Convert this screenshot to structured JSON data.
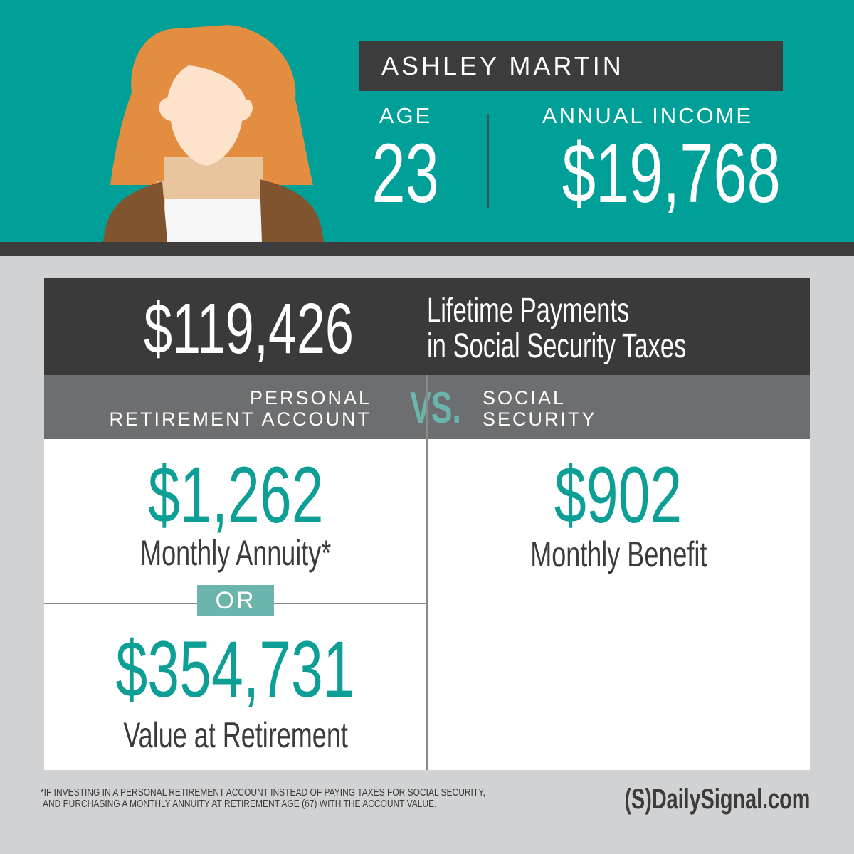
{
  "profile": {
    "name": "ASHLEY MARTIN",
    "age_label": "AGE",
    "age": "23",
    "income_label": "ANNUAL INCOME",
    "income": "$19,768"
  },
  "lifetime": {
    "amount": "$119,426",
    "line1": "Lifetime Payments",
    "line2": "in Social Security Taxes"
  },
  "comparison": {
    "left_heading_line1": "PERSONAL",
    "left_heading_line2": "RETIREMENT ACCOUNT",
    "vs": "VS.",
    "right_heading_line1": "SOCIAL",
    "right_heading_line2": "SECURITY",
    "annuity_amount": "$1,262",
    "annuity_label": "Monthly Annuity*",
    "or_label": "OR",
    "retirement_value": "$354,731",
    "retirement_label": "Value at Retirement",
    "benefit_amount": "$902",
    "benefit_label": "Monthly Benefit"
  },
  "footnote": {
    "line1": "*IF INVESTING IN A PERSONAL RETIREMENT ACCOUNT INSTEAD OF PAYING TAXES FOR SOCIAL SECURITY,",
    "line2": "AND PURCHASING A MONTHLY ANNUITY AT RETIREMENT AGE (67) WITH THE ACCOUNT VALUE."
  },
  "logo": "(S)DailySignal.com",
  "colors": {
    "teal": "#00a098",
    "teal_text": "#0d9e95",
    "or_box": "#6bb5ad",
    "dark": "#3a3a3a",
    "gray": "#6d6e70"
  }
}
